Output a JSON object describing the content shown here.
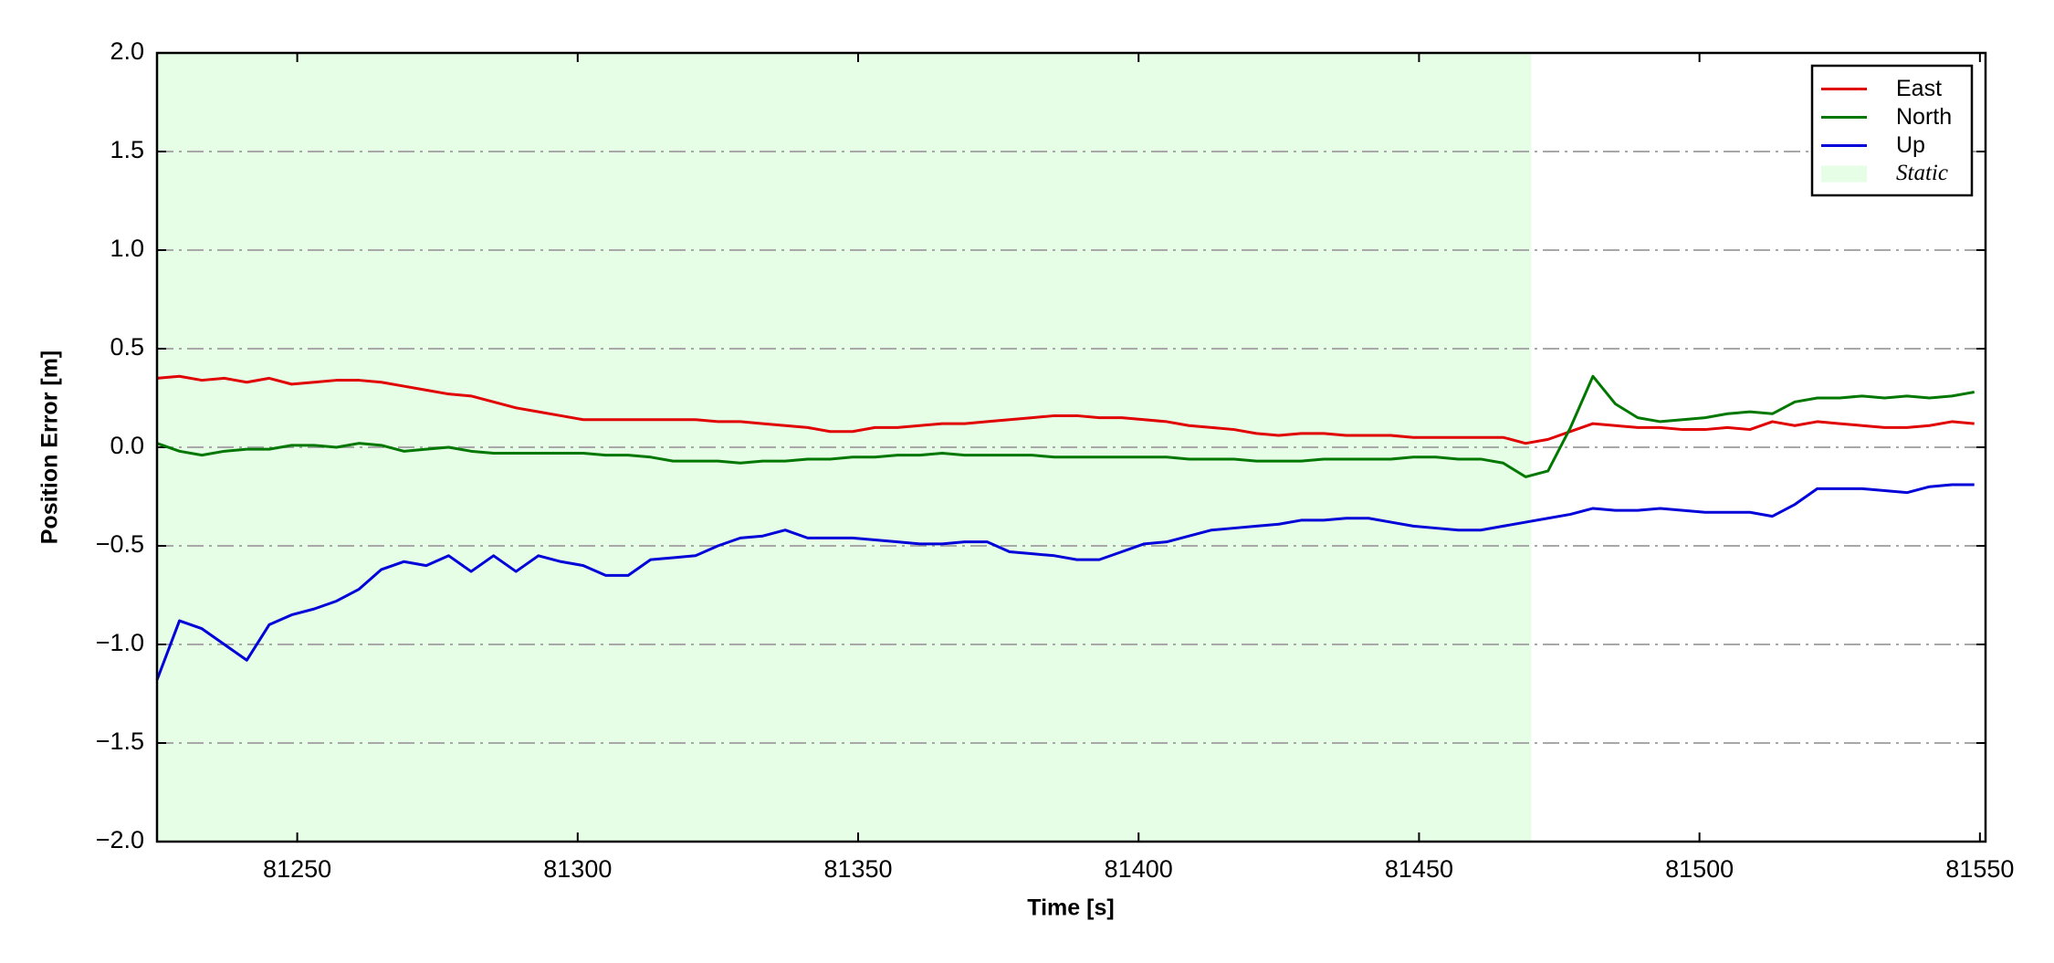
{
  "chart_data": {
    "type": "line",
    "x_label": "Time [s]",
    "y_label": "Position Error [m]",
    "xlim": [
      81225,
      81551
    ],
    "ylim": [
      -2.0,
      2.0
    ],
    "xticks": [
      81250,
      81300,
      81350,
      81400,
      81450,
      81500,
      81550
    ],
    "yticks": [
      {
        "value": -2.0,
        "label": "−2.0"
      },
      {
        "value": -1.5,
        "label": "−1.5"
      },
      {
        "value": -1.0,
        "label": "−1.0"
      },
      {
        "value": -0.5,
        "label": "−0.5"
      },
      {
        "value": 0.0,
        "label": "0.0"
      },
      {
        "value": 0.5,
        "label": "0.5"
      },
      {
        "value": 1.0,
        "label": "1.0"
      },
      {
        "value": 1.5,
        "label": "1.5"
      },
      {
        "value": 2.0,
        "label": "2.0"
      }
    ],
    "grid": true,
    "legend": "upper right",
    "shade": {
      "label": "Static",
      "color": "#e6fde6",
      "xlim": [
        81225,
        81470
      ]
    },
    "x": [
      81225,
      81229,
      81233,
      81237,
      81241,
      81245,
      81249,
      81253,
      81257,
      81261,
      81265,
      81269,
      81273,
      81277,
      81281,
      81285,
      81289,
      81293,
      81297,
      81301,
      81305,
      81309,
      81313,
      81317,
      81321,
      81325,
      81329,
      81333,
      81337,
      81341,
      81345,
      81349,
      81353,
      81357,
      81361,
      81365,
      81369,
      81373,
      81377,
      81381,
      81385,
      81389,
      81393,
      81397,
      81401,
      81405,
      81409,
      81413,
      81417,
      81421,
      81425,
      81429,
      81433,
      81437,
      81441,
      81445,
      81449,
      81453,
      81457,
      81461,
      81465,
      81469,
      81473,
      81477,
      81481,
      81485,
      81489,
      81493,
      81497,
      81501,
      81505,
      81509,
      81513,
      81517,
      81521,
      81525,
      81529,
      81533,
      81537,
      81541,
      81545,
      81549
    ],
    "series": [
      {
        "name": "East",
        "color": "#e00000",
        "values": [
          0.35,
          0.36,
          0.34,
          0.35,
          0.33,
          0.35,
          0.32,
          0.33,
          0.34,
          0.34,
          0.33,
          0.31,
          0.29,
          0.27,
          0.26,
          0.23,
          0.2,
          0.18,
          0.16,
          0.14,
          0.14,
          0.14,
          0.14,
          0.14,
          0.14,
          0.13,
          0.13,
          0.12,
          0.11,
          0.1,
          0.08,
          0.08,
          0.1,
          0.1,
          0.11,
          0.12,
          0.12,
          0.13,
          0.14,
          0.15,
          0.16,
          0.16,
          0.15,
          0.15,
          0.14,
          0.13,
          0.11,
          0.1,
          0.09,
          0.07,
          0.06,
          0.07,
          0.07,
          0.06,
          0.06,
          0.06,
          0.05,
          0.05,
          0.05,
          0.05,
          0.05,
          0.02,
          0.04,
          0.08,
          0.12,
          0.11,
          0.1,
          0.1,
          0.09,
          0.09,
          0.1,
          0.09,
          0.13,
          0.11,
          0.13,
          0.12,
          0.11,
          0.1,
          0.1,
          0.11,
          0.13,
          0.12
        ]
      },
      {
        "name": "North",
        "color": "#007800",
        "values": [
          0.02,
          -0.02,
          -0.04,
          -0.02,
          -0.01,
          -0.01,
          0.01,
          0.01,
          0.0,
          0.02,
          0.01,
          -0.02,
          -0.01,
          0.0,
          -0.02,
          -0.03,
          -0.03,
          -0.03,
          -0.03,
          -0.03,
          -0.04,
          -0.04,
          -0.05,
          -0.07,
          -0.07,
          -0.07,
          -0.08,
          -0.07,
          -0.07,
          -0.06,
          -0.06,
          -0.05,
          -0.05,
          -0.04,
          -0.04,
          -0.03,
          -0.04,
          -0.04,
          -0.04,
          -0.04,
          -0.05,
          -0.05,
          -0.05,
          -0.05,
          -0.05,
          -0.05,
          -0.06,
          -0.06,
          -0.06,
          -0.07,
          -0.07,
          -0.07,
          -0.06,
          -0.06,
          -0.06,
          -0.06,
          -0.05,
          -0.05,
          -0.06,
          -0.06,
          -0.08,
          -0.15,
          -0.12,
          0.1,
          0.36,
          0.22,
          0.15,
          0.13,
          0.14,
          0.15,
          0.17,
          0.18,
          0.17,
          0.23,
          0.25,
          0.25,
          0.26,
          0.25,
          0.26,
          0.25,
          0.26,
          0.28
        ]
      },
      {
        "name": "Up",
        "color": "#0000d8",
        "values": [
          -1.18,
          -0.88,
          -0.92,
          -1.0,
          -1.08,
          -0.9,
          -0.85,
          -0.82,
          -0.78,
          -0.72,
          -0.62,
          -0.58,
          -0.6,
          -0.55,
          -0.63,
          -0.55,
          -0.63,
          -0.55,
          -0.58,
          -0.6,
          -0.65,
          -0.65,
          -0.57,
          -0.56,
          -0.55,
          -0.5,
          -0.46,
          -0.45,
          -0.42,
          -0.46,
          -0.46,
          -0.46,
          -0.47,
          -0.48,
          -0.49,
          -0.49,
          -0.48,
          -0.48,
          -0.53,
          -0.54,
          -0.55,
          -0.57,
          -0.57,
          -0.53,
          -0.49,
          -0.48,
          -0.45,
          -0.42,
          -0.41,
          -0.4,
          -0.39,
          -0.37,
          -0.37,
          -0.36,
          -0.36,
          -0.38,
          -0.4,
          -0.41,
          -0.42,
          -0.42,
          -0.4,
          -0.38,
          -0.36,
          -0.34,
          -0.31,
          -0.32,
          -0.32,
          -0.31,
          -0.32,
          -0.33,
          -0.33,
          -0.33,
          -0.35,
          -0.29,
          -0.21,
          -0.21,
          -0.21,
          -0.22,
          -0.23,
          -0.2,
          -0.19,
          -0.19
        ]
      }
    ]
  }
}
